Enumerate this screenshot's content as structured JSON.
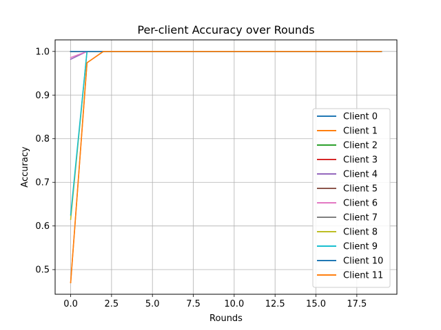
{
  "chart_data": {
    "type": "line",
    "title": "Per-client Accuracy over Rounds",
    "xlabel": "Rounds",
    "ylabel": "Accuracy",
    "xlim": [
      -0.95,
      19.95
    ],
    "ylim": [
      0.4435,
      1.0265
    ],
    "xticks": [
      0.0,
      2.5,
      5.0,
      7.5,
      10.0,
      12.5,
      15.0,
      17.5
    ],
    "xtick_labels": [
      "0.0",
      "2.5",
      "5.0",
      "7.5",
      "10.0",
      "12.5",
      "15.0",
      "17.5"
    ],
    "yticks": [
      0.5,
      0.6,
      0.7,
      0.8,
      0.9,
      1.0
    ],
    "ytick_labels": [
      "0.5",
      "0.6",
      "0.7",
      "0.8",
      "0.9",
      "1.0"
    ],
    "grid": true,
    "legend_position": "lower-right",
    "x": [
      0,
      1,
      2,
      3,
      4,
      5,
      6,
      7,
      8,
      9,
      10,
      11,
      12,
      13,
      14,
      15,
      16,
      17,
      18,
      19
    ],
    "series": [
      {
        "name": "Client 0",
        "color": "#1f77b4",
        "values": [
          1.0,
          1.0,
          1.0,
          1.0,
          1.0,
          1.0,
          1.0,
          1.0,
          1.0,
          1.0,
          1.0,
          1.0,
          1.0,
          1.0,
          1.0,
          1.0,
          1.0,
          1.0,
          1.0,
          1.0
        ]
      },
      {
        "name": "Client 1",
        "color": "#ff7f0e",
        "values": [
          0.47,
          0.974,
          1.0,
          1.0,
          1.0,
          1.0,
          1.0,
          1.0,
          1.0,
          1.0,
          1.0,
          1.0,
          1.0,
          1.0,
          1.0,
          1.0,
          1.0,
          1.0,
          1.0,
          1.0
        ]
      },
      {
        "name": "Client 2",
        "color": "#2ca02c",
        "values": [
          1.0,
          1.0,
          1.0,
          1.0,
          1.0,
          1.0,
          1.0,
          1.0,
          1.0,
          1.0,
          1.0,
          1.0,
          1.0,
          1.0,
          1.0,
          1.0,
          1.0,
          1.0,
          1.0,
          1.0
        ]
      },
      {
        "name": "Client 3",
        "color": "#d62728",
        "values": [
          1.0,
          1.0,
          1.0,
          1.0,
          1.0,
          1.0,
          1.0,
          1.0,
          1.0,
          1.0,
          1.0,
          1.0,
          1.0,
          1.0,
          1.0,
          1.0,
          1.0,
          1.0,
          1.0,
          1.0
        ]
      },
      {
        "name": "Client 4",
        "color": "#9467bd",
        "values": [
          0.982,
          1.0,
          1.0,
          1.0,
          1.0,
          1.0,
          1.0,
          1.0,
          1.0,
          1.0,
          1.0,
          1.0,
          1.0,
          1.0,
          1.0,
          1.0,
          1.0,
          1.0,
          1.0,
          1.0
        ]
      },
      {
        "name": "Client 5",
        "color": "#8c564b",
        "values": [
          1.0,
          1.0,
          1.0,
          1.0,
          1.0,
          1.0,
          1.0,
          1.0,
          1.0,
          1.0,
          1.0,
          1.0,
          1.0,
          1.0,
          1.0,
          1.0,
          1.0,
          1.0,
          1.0,
          1.0
        ]
      },
      {
        "name": "Client 6",
        "color": "#e377c2",
        "values": [
          0.986,
          1.0,
          1.0,
          1.0,
          1.0,
          1.0,
          1.0,
          1.0,
          1.0,
          1.0,
          1.0,
          1.0,
          1.0,
          1.0,
          1.0,
          1.0,
          1.0,
          1.0,
          1.0,
          1.0
        ]
      },
      {
        "name": "Client 7",
        "color": "#7f7f7f",
        "values": [
          1.0,
          1.0,
          1.0,
          1.0,
          1.0,
          1.0,
          1.0,
          1.0,
          1.0,
          1.0,
          1.0,
          1.0,
          1.0,
          1.0,
          1.0,
          1.0,
          1.0,
          1.0,
          1.0,
          1.0
        ]
      },
      {
        "name": "Client 8",
        "color": "#bcbd22",
        "values": [
          0.615,
          1.0,
          1.0,
          1.0,
          1.0,
          1.0,
          1.0,
          1.0,
          1.0,
          1.0,
          1.0,
          1.0,
          1.0,
          1.0,
          1.0,
          1.0,
          1.0,
          1.0,
          1.0,
          1.0
        ]
      },
      {
        "name": "Client 9",
        "color": "#17becf",
        "values": [
          0.625,
          1.0,
          1.0,
          1.0,
          1.0,
          1.0,
          1.0,
          1.0,
          1.0,
          1.0,
          1.0,
          1.0,
          1.0,
          1.0,
          1.0,
          1.0,
          1.0,
          1.0,
          1.0,
          1.0
        ]
      },
      {
        "name": "Client 10",
        "color": "#1f77b4",
        "values": [
          1.0,
          1.0,
          1.0,
          1.0,
          1.0,
          1.0,
          1.0,
          1.0,
          1.0,
          1.0,
          1.0,
          1.0,
          1.0,
          1.0,
          1.0,
          1.0,
          1.0,
          1.0,
          1.0,
          1.0
        ]
      },
      {
        "name": "Client 11",
        "color": "#ff7f0e",
        "values": [
          0.47,
          0.974,
          1.0,
          1.0,
          1.0,
          1.0,
          1.0,
          1.0,
          1.0,
          1.0,
          1.0,
          1.0,
          1.0,
          1.0,
          1.0,
          1.0,
          1.0,
          1.0,
          1.0,
          1.0
        ]
      }
    ]
  }
}
